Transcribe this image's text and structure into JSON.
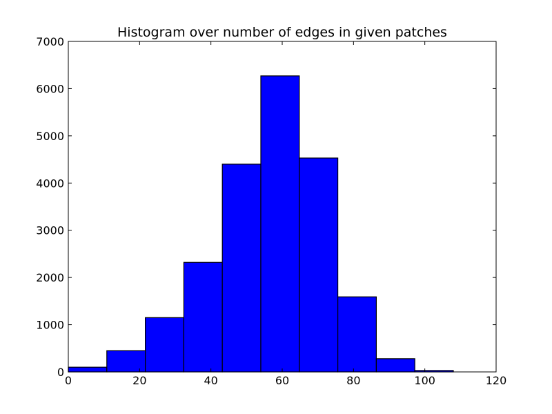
{
  "chart_data": {
    "type": "bar",
    "title": "Histogram over number of edges in given patches",
    "xlabel": "",
    "ylabel": "",
    "xlim": [
      0,
      120
    ],
    "ylim": [
      0,
      7000
    ],
    "xticks": [
      0,
      20,
      40,
      60,
      80,
      100,
      120
    ],
    "yticks": [
      0,
      1000,
      2000,
      3000,
      4000,
      5000,
      6000,
      7000
    ],
    "bin_edges": [
      0,
      10.8,
      21.6,
      32.4,
      43.2,
      54,
      64.8,
      75.6,
      86.4,
      97.2,
      108
    ],
    "values": [
      100,
      450,
      1150,
      2320,
      4400,
      6270,
      4530,
      1590,
      280,
      30
    ],
    "grid": false,
    "bar_color": "#0000ff",
    "edge_color": "#000000"
  }
}
